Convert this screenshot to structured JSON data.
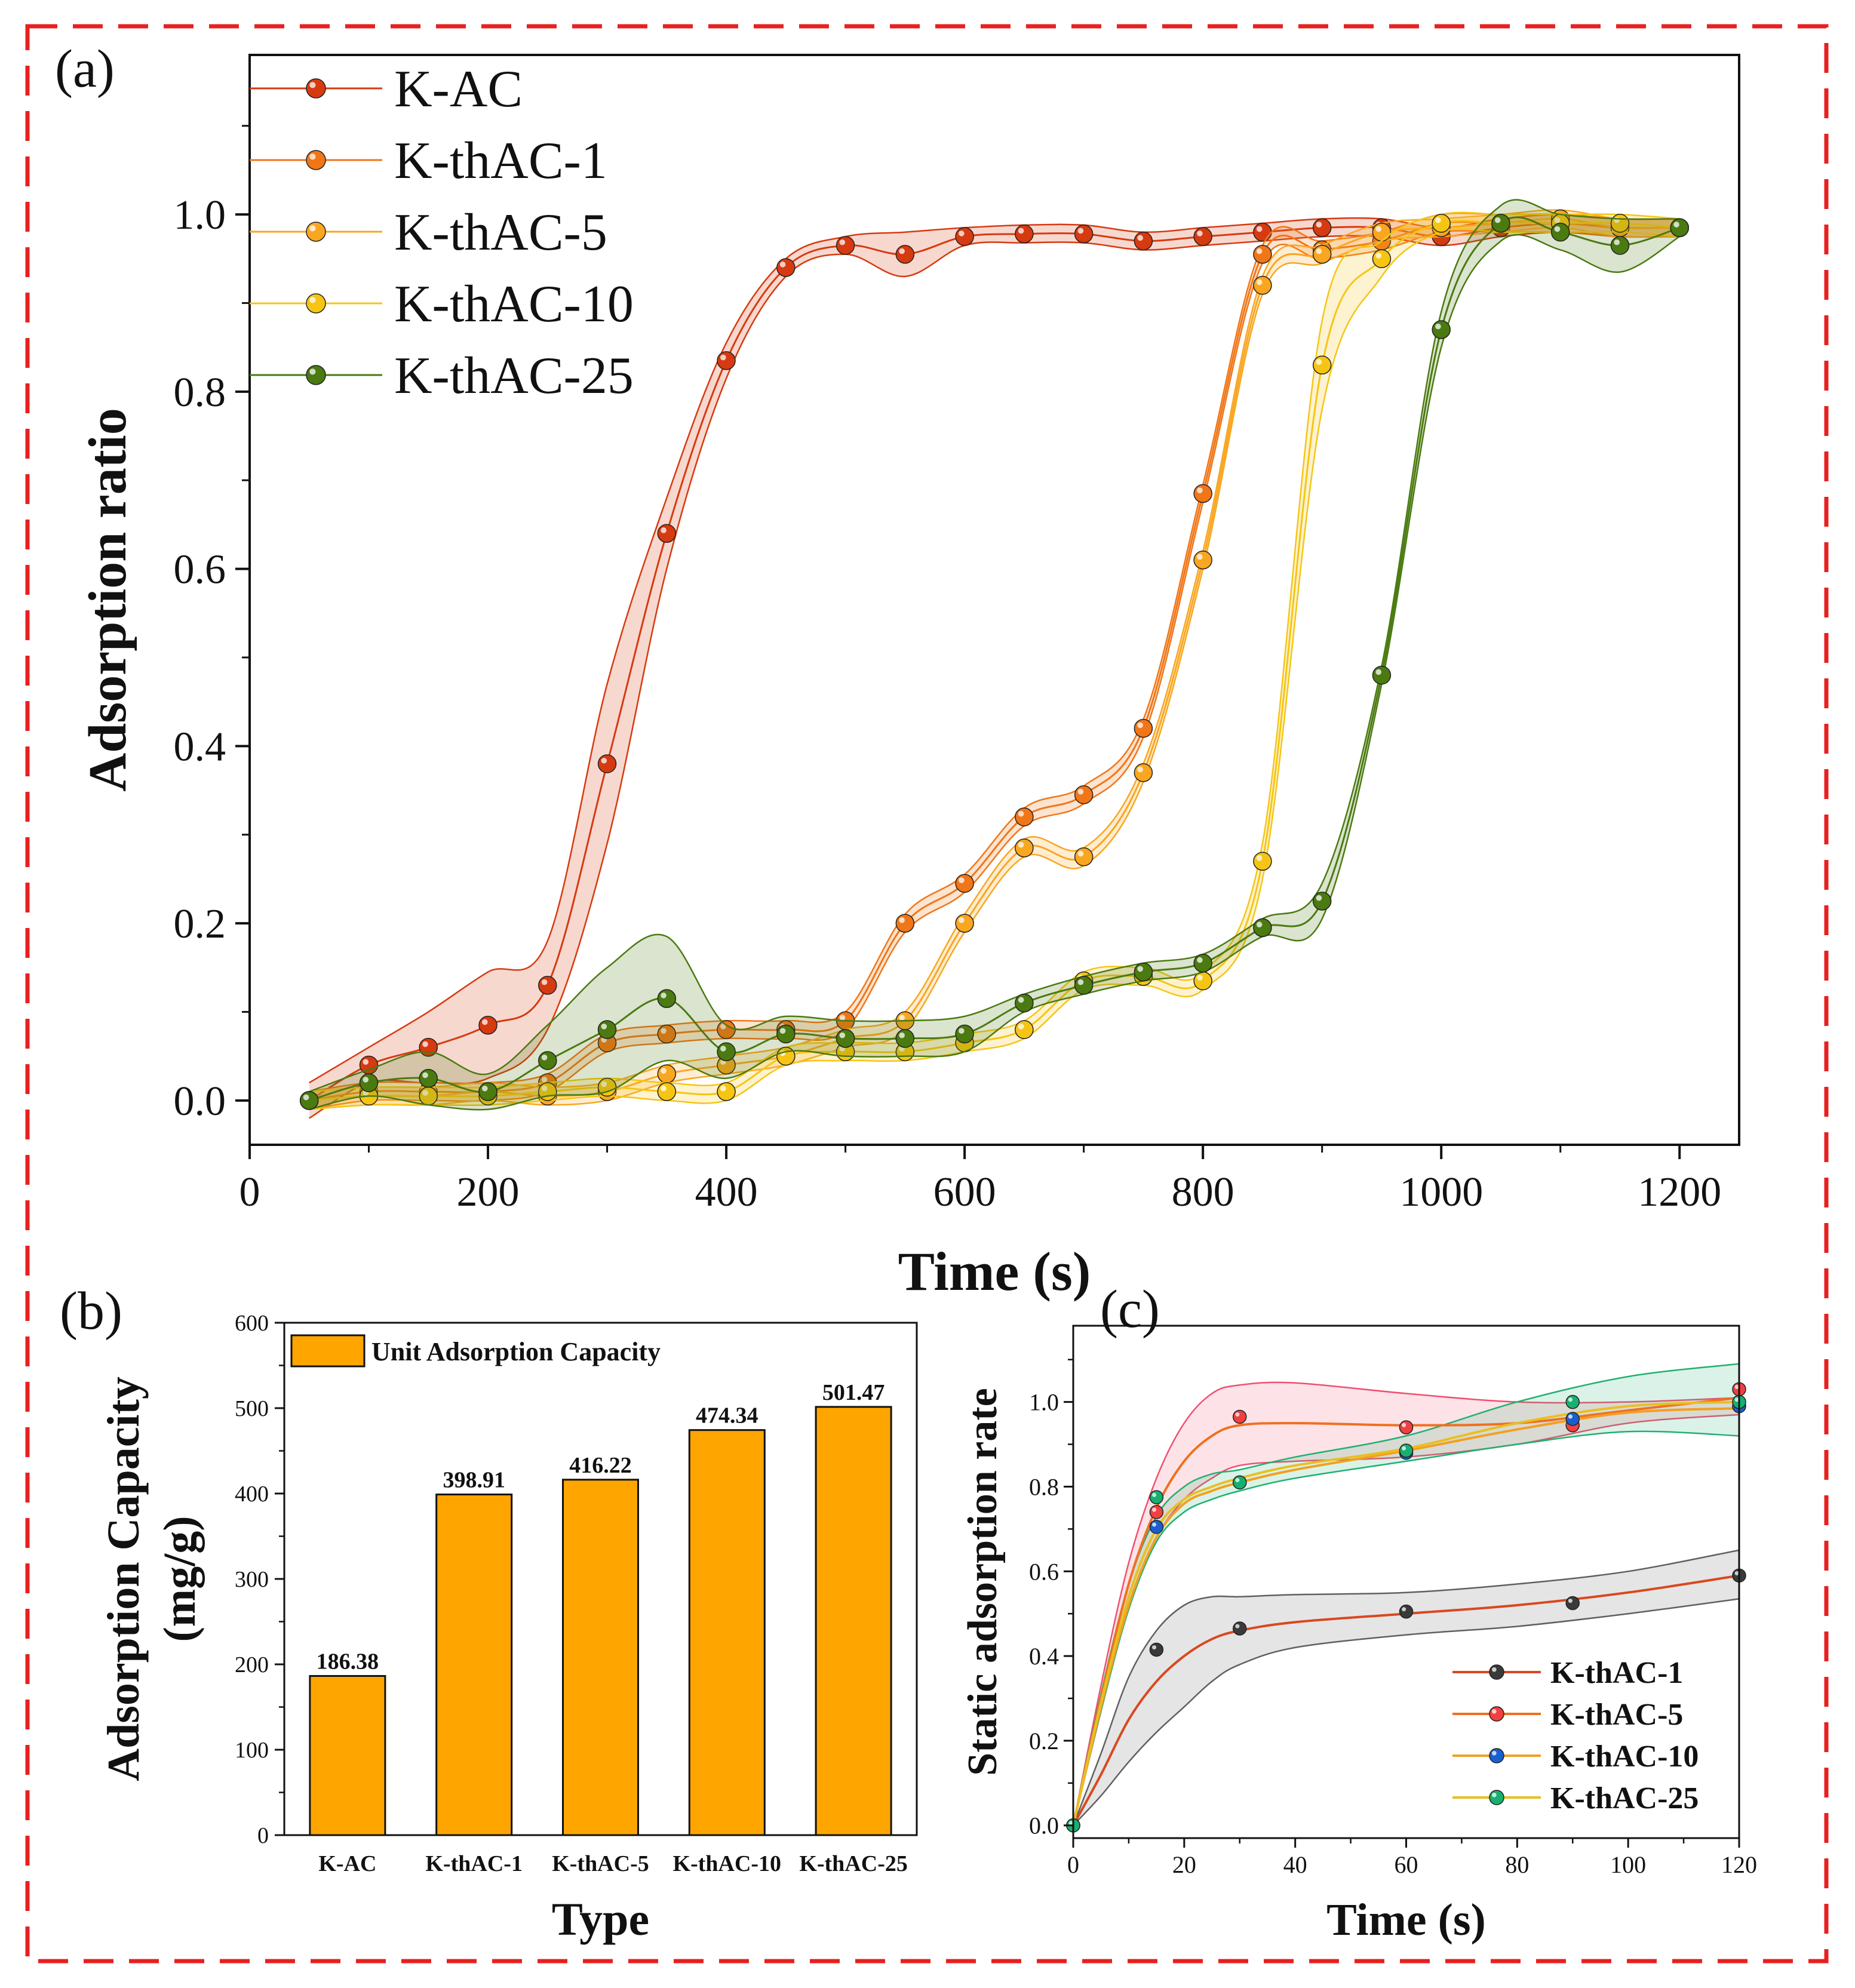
{
  "colors": {
    "K-AC": "#d63a10",
    "K-thAC-1": "#f07618",
    "K-thAC-5": "#f9a620",
    "K-thAC-10": "#f6c514",
    "K-thAC-25": "#4a7a10",
    "bar": "#ffa500",
    "frame": "#e82020",
    "c_line_1": "#d94820",
    "c_line_5": "#f07020",
    "c_line_10": "#f2a020",
    "c_line_25": "#e8c020",
    "c_dot_1": "#3a3a3a",
    "c_dot_5": "#f04040",
    "c_dot_10": "#1a5fd0",
    "c_dot_25": "#18b070"
  },
  "chart_data": [
    {
      "id": "a",
      "panel_label": "(a)",
      "type": "line",
      "xlabel": "Time (s)",
      "ylabel": "Adsorption ratio",
      "xlim": [
        0,
        1250
      ],
      "ylim": [
        -0.05,
        1.18
      ],
      "xticks": [
        "0",
        "200",
        "400",
        "600",
        "800",
        "1000",
        "1200"
      ],
      "yticks": [
        "0.0",
        "0.2",
        "0.4",
        "0.6",
        "0.8",
        "1.0"
      ],
      "legend_position": "top-left",
      "series": [
        {
          "name": "K-AC",
          "x": [
            50,
            100,
            150,
            200,
            250,
            300,
            350,
            400,
            450,
            500,
            550,
            600,
            650,
            700,
            750,
            800,
            850,
            900,
            950,
            1000,
            1050,
            1100,
            1150,
            1200
          ],
          "y": [
            0.0,
            0.04,
            0.06,
            0.085,
            0.13,
            0.38,
            0.64,
            0.835,
            0.94,
            0.965,
            0.955,
            0.975,
            0.978,
            0.978,
            0.97,
            0.975,
            0.98,
            0.985,
            0.985,
            0.975,
            0.985,
            0.99,
            0.985,
            0.985
          ],
          "band": [
            0.02,
            0.02,
            0.04,
            0.06,
            0.05,
            0.09,
            0.04,
            0.02,
            0.01,
            0.01,
            0.025,
            0.01,
            0.01,
            0.01,
            0.01,
            0.01,
            0.01,
            0.01,
            0.01,
            0.01,
            0.01,
            0.01,
            0.01,
            0.01
          ]
        },
        {
          "name": "K-thAC-1",
          "x": [
            50,
            100,
            150,
            200,
            250,
            300,
            350,
            400,
            450,
            500,
            550,
            600,
            650,
            700,
            750,
            800,
            850,
            900,
            950,
            1000,
            1050,
            1100,
            1150,
            1200
          ],
          "y": [
            0.0,
            0.01,
            0.01,
            0.01,
            0.02,
            0.065,
            0.075,
            0.08,
            0.08,
            0.09,
            0.2,
            0.245,
            0.32,
            0.345,
            0.42,
            0.685,
            0.955,
            0.96,
            0.97,
            0.99,
            0.99,
            0.99,
            0.985,
            0.985
          ],
          "band": [
            0.01,
            0.01,
            0.01,
            0.01,
            0.01,
            0.01,
            0.01,
            0.01,
            0.01,
            0.01,
            0.01,
            0.01,
            0.01,
            0.01,
            0.01,
            0.01,
            0.01,
            0.01,
            0.01,
            0.01,
            0.01,
            0.01,
            0.01,
            0.01
          ]
        },
        {
          "name": "K-thAC-5",
          "x": [
            50,
            100,
            150,
            200,
            250,
            300,
            350,
            400,
            450,
            500,
            550,
            600,
            650,
            700,
            750,
            800,
            850,
            900,
            950,
            1000,
            1050,
            1100,
            1150,
            1200
          ],
          "y": [
            0.0,
            0.005,
            0.005,
            0.01,
            0.005,
            0.01,
            0.03,
            0.04,
            0.05,
            0.07,
            0.09,
            0.2,
            0.285,
            0.275,
            0.37,
            0.61,
            0.92,
            0.955,
            0.98,
            0.985,
            0.99,
            0.995,
            0.985,
            0.985
          ],
          "band": [
            0.01,
            0.01,
            0.01,
            0.01,
            0.01,
            0.01,
            0.01,
            0.01,
            0.01,
            0.01,
            0.01,
            0.01,
            0.01,
            0.01,
            0.01,
            0.01,
            0.01,
            0.01,
            0.01,
            0.01,
            0.01,
            0.01,
            0.01,
            0.01
          ]
        },
        {
          "name": "K-thAC-10",
          "x": [
            50,
            100,
            150,
            200,
            250,
            300,
            350,
            400,
            450,
            500,
            550,
            600,
            650,
            700,
            750,
            800,
            850,
            900,
            950,
            1000,
            1050,
            1100,
            1150,
            1200
          ],
          "y": [
            0.0,
            0.005,
            0.005,
            0.005,
            0.01,
            0.015,
            0.01,
            0.01,
            0.05,
            0.055,
            0.055,
            0.065,
            0.08,
            0.135,
            0.14,
            0.135,
            0.27,
            0.83,
            0.95,
            0.99,
            0.99,
            0.99,
            0.99,
            0.985
          ],
          "band": [
            0.01,
            0.01,
            0.01,
            0.01,
            0.01,
            0.01,
            0.01,
            0.01,
            0.01,
            0.01,
            0.01,
            0.01,
            0.01,
            0.01,
            0.01,
            0.01,
            0.02,
            0.05,
            0.02,
            0.01,
            0.01,
            0.01,
            0.01,
            0.01
          ]
        },
        {
          "name": "K-thAC-25",
          "x": [
            50,
            100,
            150,
            200,
            250,
            300,
            350,
            400,
            450,
            500,
            550,
            600,
            650,
            700,
            750,
            800,
            850,
            900,
            950,
            1000,
            1050,
            1100,
            1150,
            1200
          ],
          "y": [
            0.0,
            0.02,
            0.025,
            0.01,
            0.045,
            0.08,
            0.115,
            0.055,
            0.075,
            0.07,
            0.07,
            0.075,
            0.11,
            0.13,
            0.145,
            0.155,
            0.195,
            0.225,
            0.48,
            0.87,
            0.99,
            0.98,
            0.965,
            0.985
          ],
          "band": [
            0.01,
            0.015,
            0.03,
            0.02,
            0.04,
            0.07,
            0.07,
            0.03,
            0.02,
            0.02,
            0.02,
            0.02,
            0.01,
            0.01,
            0.01,
            0.01,
            0.01,
            0.02,
            0.01,
            0.02,
            0.02,
            0.02,
            0.03,
            0.01
          ]
        }
      ]
    },
    {
      "id": "b",
      "panel_label": "(b)",
      "type": "bar",
      "xlabel": "Type",
      "ylabel_line1": "Adsorption Capacity",
      "ylabel_line2": "(mg/g)",
      "ylim": [
        0,
        600
      ],
      "yticks": [
        "0",
        "100",
        "200",
        "300",
        "400",
        "500",
        "600"
      ],
      "legend": "Unit Adsorption Capacity",
      "legend_position": "top-left",
      "categories": [
        "K-AC",
        "K-thAC-1",
        "K-thAC-5",
        "K-thAC-10",
        "K-thAC-25"
      ],
      "values": [
        186.38,
        398.91,
        416.22,
        474.34,
        501.47
      ],
      "labels": [
        "186.38",
        "398.91",
        "416.22",
        "474.34",
        "501.47"
      ]
    },
    {
      "id": "c",
      "panel_label": "(c)",
      "type": "line",
      "xlabel": "Time (s)",
      "ylabel": "Static adsorption rate",
      "xlim": [
        0,
        120
      ],
      "ylim": [
        -0.03,
        1.18
      ],
      "xticks": [
        "0",
        "20",
        "40",
        "60",
        "80",
        "100",
        "120"
      ],
      "yticks": [
        "0.0",
        "0.2",
        "0.4",
        "0.6",
        "0.8",
        "1.0"
      ],
      "legend_position": "bottom-right",
      "series": [
        {
          "name": "K-thAC-1",
          "points_x": [
            0,
            15,
            30,
            60,
            90,
            120
          ],
          "points_y": [
            0.0,
            0.415,
            0.465,
            0.505,
            0.525,
            0.59
          ],
          "curve_x": [
            0,
            5,
            10,
            15,
            20,
            25,
            30,
            40,
            60,
            80,
            100,
            120
          ],
          "curve_y": [
            0,
            0.12,
            0.25,
            0.34,
            0.4,
            0.44,
            0.46,
            0.48,
            0.5,
            0.52,
            0.55,
            0.59
          ],
          "band_x": [
            0,
            5,
            10,
            15,
            20,
            25,
            30,
            40,
            60,
            80,
            100,
            120
          ],
          "band_hi": [
            0,
            0.17,
            0.35,
            0.46,
            0.52,
            0.54,
            0.54,
            0.545,
            0.55,
            0.57,
            0.6,
            0.65
          ],
          "band_lo": [
            0,
            0.07,
            0.15,
            0.22,
            0.28,
            0.34,
            0.38,
            0.42,
            0.45,
            0.47,
            0.5,
            0.535
          ]
        },
        {
          "name": "K-thAC-5",
          "points_x": [
            0,
            15,
            30,
            60,
            90,
            120
          ],
          "points_y": [
            0.0,
            0.74,
            0.965,
            0.94,
            0.945,
            1.03
          ],
          "curve_x": [
            0,
            5,
            10,
            15,
            20,
            25,
            30,
            40,
            60,
            80,
            100,
            120
          ],
          "curve_y": [
            0,
            0.3,
            0.57,
            0.75,
            0.86,
            0.92,
            0.945,
            0.95,
            0.945,
            0.95,
            0.98,
            1.01
          ],
          "band_x": [
            0,
            5,
            10,
            15,
            20,
            25,
            30,
            40,
            60,
            80,
            100,
            120
          ],
          "band_hi": [
            0,
            0.33,
            0.62,
            0.82,
            0.95,
            1.02,
            1.04,
            1.045,
            1.02,
            1.0,
            1.0,
            1.01
          ],
          "band_lo": [
            0,
            0.27,
            0.52,
            0.68,
            0.77,
            0.82,
            0.85,
            0.86,
            0.87,
            0.9,
            0.95,
            0.97
          ]
        },
        {
          "name": "K-thAC-10",
          "points_x": [
            0,
            15,
            30,
            60,
            90,
            120
          ],
          "points_y": [
            0.0,
            0.705,
            0.81,
            0.88,
            0.96,
            0.99
          ],
          "curve_x": [
            0,
            5,
            10,
            15,
            20,
            25,
            30,
            40,
            60,
            80,
            100,
            120
          ],
          "curve_y": [
            0,
            0.28,
            0.52,
            0.68,
            0.76,
            0.79,
            0.81,
            0.84,
            0.885,
            0.935,
            0.975,
            0.985
          ]
        },
        {
          "name": "K-thAC-25",
          "points_x": [
            0,
            15,
            30,
            60,
            90,
            120
          ],
          "points_y": [
            0.0,
            0.775,
            0.81,
            0.885,
            1.0,
            1.0
          ],
          "curve_x": [
            0,
            5,
            10,
            15,
            20,
            25,
            30,
            40,
            60,
            80,
            100,
            120
          ],
          "curve_y": [
            0,
            0.29,
            0.54,
            0.7,
            0.77,
            0.8,
            0.82,
            0.85,
            0.89,
            0.95,
            0.99,
            1.0
          ],
          "band_x": [
            0,
            5,
            10,
            15,
            20,
            25,
            30,
            40,
            60,
            80,
            100,
            120
          ],
          "band_hi": [
            0,
            0.31,
            0.57,
            0.73,
            0.8,
            0.83,
            0.84,
            0.87,
            0.92,
            1.0,
            1.06,
            1.09
          ],
          "band_lo": [
            0,
            0.27,
            0.51,
            0.67,
            0.74,
            0.77,
            0.79,
            0.82,
            0.86,
            0.9,
            0.93,
            0.92
          ]
        }
      ]
    }
  ]
}
